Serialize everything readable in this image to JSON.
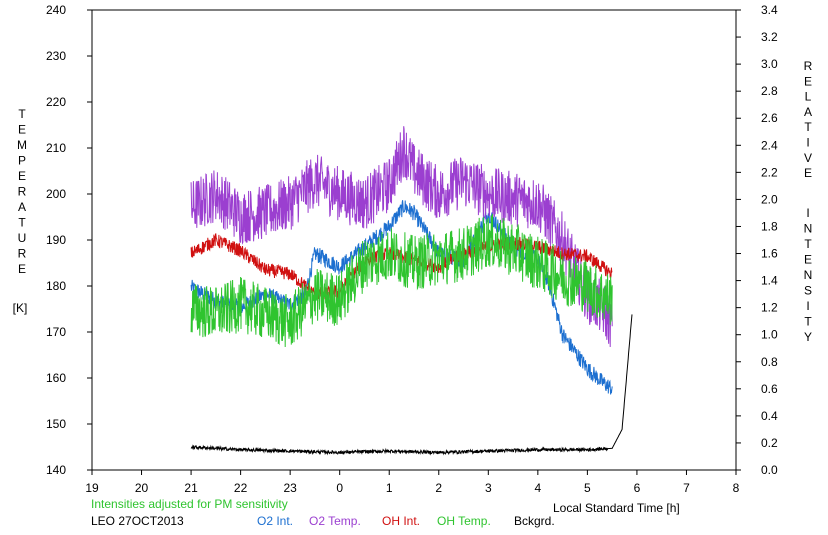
{
  "chart_data": {
    "type": "line",
    "xlabel": "Local Standard Time [h]",
    "ylabel_left": "TEMPERATURE [K]",
    "ylabel_left_letters": [
      "T",
      "E",
      "M",
      "P",
      "E",
      "R",
      "A",
      "T",
      "U",
      "R",
      "E"
    ],
    "ylabel_left_unit": "[K]",
    "ylabel_right": "RELATIVE INTENSITY",
    "ylabel_right_words": [
      "RELATIVE",
      "INTENSITY"
    ],
    "x_range": [
      19,
      32
    ],
    "x_tick_values": [
      19,
      20,
      21,
      22,
      23,
      24,
      25,
      26,
      27,
      28,
      29,
      30,
      31,
      32
    ],
    "x_tick_labels": [
      "19",
      "20",
      "21",
      "22",
      "23",
      "0",
      "1",
      "2",
      "3",
      "4",
      "5",
      "6",
      "7",
      "8"
    ],
    "y_left_range": [
      140,
      240
    ],
    "y_left_ticks": [
      140,
      150,
      160,
      170,
      180,
      190,
      200,
      210,
      220,
      230,
      240
    ],
    "y_right_range": [
      0,
      3.4
    ],
    "y_right_ticks": [
      "0.0",
      "0.2",
      "0.4",
      "0.6",
      "0.8",
      "1.0",
      "1.2",
      "1.4",
      "1.6",
      "1.8",
      "2.0",
      "2.2",
      "2.4",
      "2.6",
      "2.8",
      "3.0",
      "3.2",
      "3.4"
    ],
    "grid": false,
    "legend_position": "bottom",
    "note": "Intensities adjusted for PM sensitivity",
    "station_date": "LEO 27OCT2013",
    "series": [
      {
        "name": "O2 Int.",
        "axis": "right",
        "color": "#1c6fd0",
        "x": [
          21.0,
          21.5,
          22.0,
          22.5,
          23.0,
          23.3,
          23.5,
          24.0,
          24.5,
          25.0,
          25.3,
          25.5,
          26.0,
          26.5,
          27.0,
          27.5,
          28.0,
          28.2,
          28.5,
          28.7,
          29.0,
          29.3,
          29.5
        ],
        "y": [
          1.35,
          1.25,
          1.2,
          1.3,
          1.22,
          1.3,
          1.6,
          1.5,
          1.65,
          1.8,
          1.95,
          1.9,
          1.6,
          1.55,
          1.9,
          1.65,
          1.55,
          1.4,
          1.0,
          0.9,
          0.75,
          0.65,
          0.6
        ]
      },
      {
        "name": "O2 Temp.",
        "axis": "left",
        "color": "#9b3fd0",
        "x": [
          21.0,
          21.5,
          22.0,
          22.5,
          23.0,
          23.5,
          24.0,
          24.5,
          25.0,
          25.3,
          25.5,
          26.0,
          26.5,
          27.0,
          27.5,
          28.0,
          28.5,
          28.7,
          29.0,
          29.3,
          29.5
        ],
        "y": [
          197,
          200,
          195,
          196,
          198,
          203,
          200,
          198,
          202,
          210,
          205,
          200,
          203,
          200,
          199,
          198,
          190,
          185,
          178,
          175,
          172
        ]
      },
      {
        "name": "OH Int.",
        "axis": "right",
        "color": "#d01010",
        "x": [
          21.0,
          21.5,
          22.0,
          22.5,
          23.0,
          23.5,
          24.0,
          24.5,
          25.0,
          25.5,
          26.0,
          26.5,
          27.0,
          27.5,
          28.0,
          28.5,
          29.0,
          29.3,
          29.5
        ],
        "y": [
          1.6,
          1.7,
          1.62,
          1.48,
          1.45,
          1.3,
          1.32,
          1.55,
          1.6,
          1.55,
          1.5,
          1.6,
          1.65,
          1.68,
          1.65,
          1.6,
          1.58,
          1.5,
          1.45
        ]
      },
      {
        "name": "OH Temp.",
        "axis": "left",
        "color": "#2fc42f",
        "x": [
          21.0,
          21.5,
          22.0,
          22.5,
          23.0,
          23.5,
          24.0,
          24.5,
          25.0,
          25.5,
          26.0,
          26.5,
          27.0,
          27.5,
          28.0,
          28.5,
          29.0,
          29.3,
          29.5
        ],
        "y": [
          175,
          174,
          176,
          174,
          172,
          178,
          177,
          185,
          187,
          185,
          186,
          187,
          190,
          188,
          185,
          182,
          180,
          178,
          177
        ]
      },
      {
        "name": "Bckgrd.",
        "axis": "right",
        "color": "#000000",
        "x": [
          21.0,
          22.0,
          23.0,
          24.0,
          25.0,
          26.0,
          27.0,
          28.0,
          29.0,
          29.5,
          29.7,
          29.9
        ],
        "y": [
          0.17,
          0.15,
          0.14,
          0.13,
          0.14,
          0.13,
          0.14,
          0.15,
          0.15,
          0.16,
          0.3,
          1.15
        ]
      }
    ]
  }
}
